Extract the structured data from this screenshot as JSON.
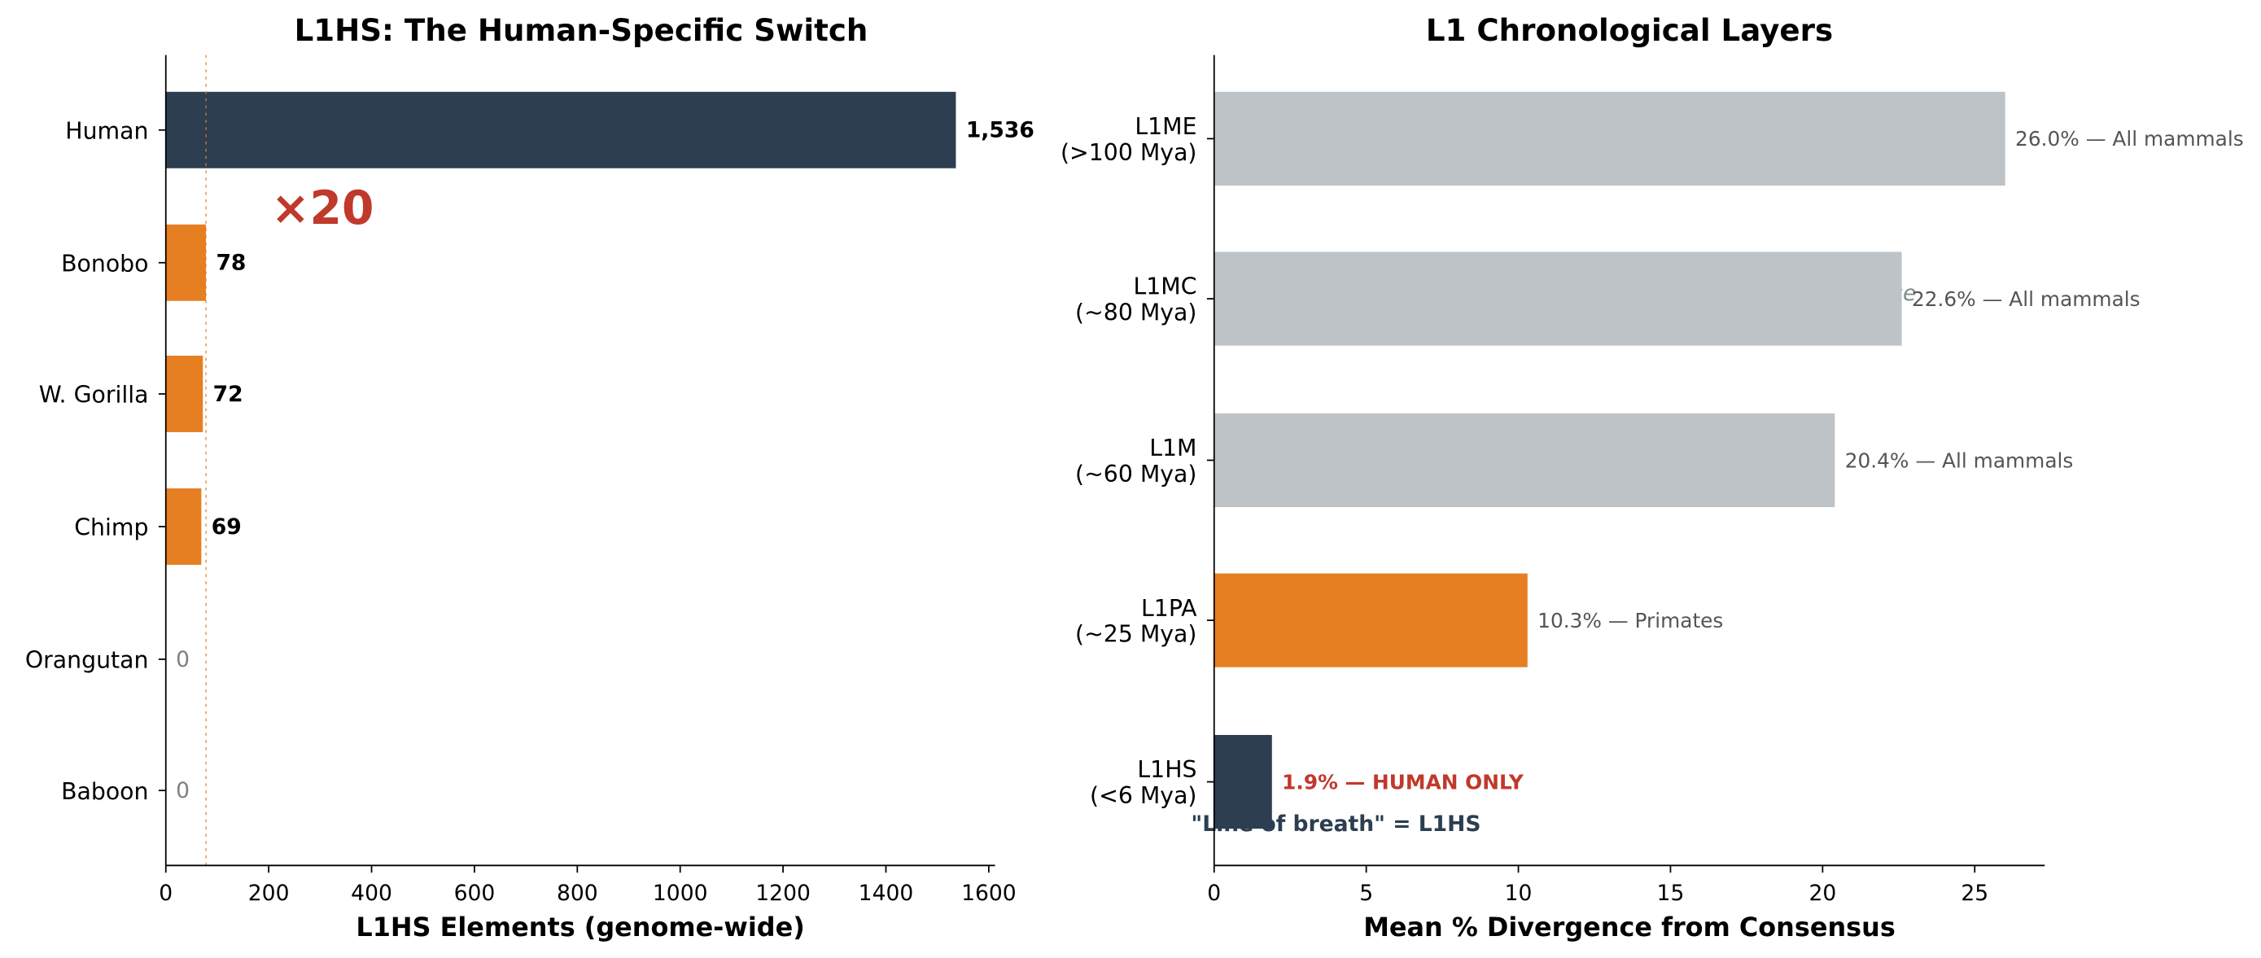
{
  "chart_data": [
    {
      "type": "barh",
      "title": "L1HS: The Human-Specific Switch",
      "xlabel": "L1HS Elements (genome-wide)",
      "categories": [
        "Human",
        "Bonobo",
        "W. Gorilla",
        "Chimp",
        "Orangutan",
        "Baboon"
      ],
      "values": [
        1536,
        78,
        72,
        69,
        0,
        0
      ],
      "value_labels": [
        "1,536",
        "78",
        "72",
        "69",
        "0",
        "0"
      ],
      "colors": [
        "#2c3e50",
        "#e67e22",
        "#e67e22",
        "#e67e22",
        "#e67e22",
        "#e67e22"
      ],
      "label_colors": [
        "#000000",
        "#000000",
        "#000000",
        "#000000",
        "#808080",
        "#808080"
      ],
      "xlim": [
        0,
        1612
      ],
      "xticks": [
        0,
        200,
        400,
        600,
        800,
        1000,
        1200,
        1400,
        1600
      ],
      "reference_line": 78,
      "reference_color": "#e67e22",
      "annotation": "×20",
      "annotation_color": "#c0392b"
    },
    {
      "type": "barh",
      "title": "L1 Chronological Layers",
      "xlabel": "Mean % Divergence from Consensus",
      "categories": [
        "L1ME\n(>100 Mya)",
        "L1MC\n(~80 Mya)",
        "L1M\n(~60 Mya)",
        "L1PA\n(~25 Mya)",
        "L1HS\n(<6 Mya)"
      ],
      "values": [
        26.0,
        22.6,
        20.4,
        10.3,
        1.9
      ],
      "value_labels": [
        "26.0% — All mammals",
        "22.6% — All mammals",
        "20.4% — All mammals",
        "10.3% — Primates",
        "1.9% — HUMAN ONLY"
      ],
      "colors": [
        "#bdc3c7",
        "#bdc3c7",
        "#bdc3c7",
        "#e67e22",
        "#2c3e50"
      ],
      "label_colors": [
        "#555555",
        "#555555",
        "#555555",
        "#555555",
        "#c0392b"
      ],
      "xlim": [
        0,
        27.3
      ],
      "xticks": [
        0,
        5,
        10,
        15,
        20,
        25
      ],
      "annotations": [
        "\"hamadA\" = base",
        "\"Line of breath\" = L1HS"
      ],
      "annotation_colors": [
        "#7f8c8d",
        "#2c3e50"
      ]
    }
  ]
}
